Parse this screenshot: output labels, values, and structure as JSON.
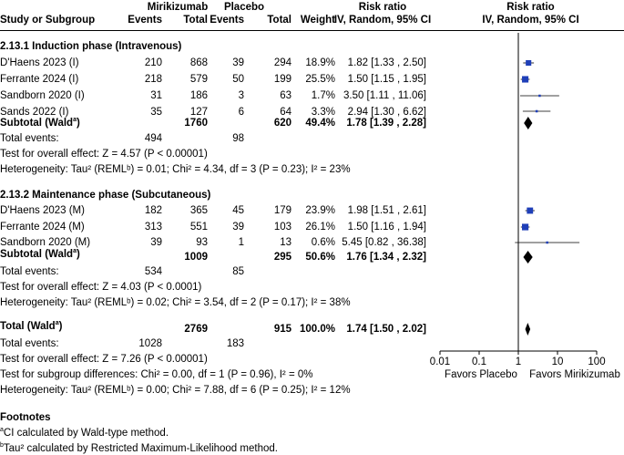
{
  "header": {
    "col_study": "Study or Subgroup",
    "group1": "Mirikizumab",
    "group2": "Placebo",
    "events": "Events",
    "total": "Total",
    "weight": "Weight",
    "rr_title": "Risk ratio",
    "rr_method": "IV, Random, 95% CI",
    "plot_title": "Risk ratio",
    "plot_method": "IV, Random, 95% CI"
  },
  "subgroups": [
    {
      "title": "2.13.1 Induction phase (Intravenous)",
      "studies": [
        {
          "name": "D'Haens 2023 (I)",
          "e1": "210",
          "n1": "868",
          "e2": "39",
          "n2": "294",
          "weight": "18.9%",
          "ci_text": "1.82 [1.33 , 2.50]",
          "rr": 1.82,
          "lo": 1.33,
          "hi": 2.5
        },
        {
          "name": "Ferrante 2024 (I)",
          "e1": "218",
          "n1": "579",
          "e2": "50",
          "n2": "199",
          "weight": "25.5%",
          "ci_text": "1.50 [1.15 , 1.95]",
          "rr": 1.5,
          "lo": 1.15,
          "hi": 1.95
        },
        {
          "name": "Sandborn 2020 (I)",
          "e1": "31",
          "n1": "186",
          "e2": "3",
          "n2": "63",
          "weight": "1.7%",
          "ci_text": "3.50 [1.11 , 11.06]",
          "rr": 3.5,
          "lo": 1.11,
          "hi": 11.06
        },
        {
          "name": "Sands 2022 (I)",
          "e1": "35",
          "n1": "127",
          "e2": "6",
          "n2": "64",
          "weight": "3.3%",
          "ci_text": "2.94 [1.30 , 6.62]",
          "rr": 2.94,
          "lo": 1.3,
          "hi": 6.62
        }
      ],
      "subtotal": {
        "label": "Subtotal (Wald",
        "sup": "a",
        "n1": "1760",
        "n2": "620",
        "weight": "49.4%",
        "ci_text": "1.78 [1.39 , 2.28]",
        "rr": 1.78,
        "lo": 1.39,
        "hi": 2.28
      },
      "total_events_label": "Total events:",
      "total_events1": "494",
      "total_events2": "98",
      "overall_effect": "Test for overall effect: Z = 4.57 (P < 0.00001)",
      "heterogeneity": "Heterogeneity: Tau² (REMLᵇ) = 0.01; Chi² = 4.34, df = 3 (P = 0.23); I² = 23%"
    },
    {
      "title": "2.13.2 Maintenance phase (Subcutaneous)",
      "studies": [
        {
          "name": "D'Haens 2023 (M)",
          "e1": "182",
          "n1": "365",
          "e2": "45",
          "n2": "179",
          "weight": "23.9%",
          "ci_text": "1.98 [1.51 , 2.61]",
          "rr": 1.98,
          "lo": 1.51,
          "hi": 2.61
        },
        {
          "name": "Ferrante 2024 (M)",
          "e1": "313",
          "n1": "551",
          "e2": "39",
          "n2": "103",
          "weight": "26.1%",
          "ci_text": "1.50 [1.16 , 1.94]",
          "rr": 1.5,
          "lo": 1.16,
          "hi": 1.94
        },
        {
          "name": "Sandborn 2020 (M)",
          "e1": "39",
          "n1": "93",
          "e2": "1",
          "n2": "13",
          "weight": "0.6%",
          "ci_text": "5.45 [0.82 , 36.38]",
          "rr": 5.45,
          "lo": 0.82,
          "hi": 36.38
        }
      ],
      "subtotal": {
        "label": "Subtotal (Wald",
        "sup": "a",
        "n1": "1009",
        "n2": "295",
        "weight": "50.6%",
        "ci_text": "1.76 [1.34 , 2.32]",
        "rr": 1.76,
        "lo": 1.34,
        "hi": 2.32
      },
      "total_events_label": "Total events:",
      "total_events1": "534",
      "total_events2": "85",
      "overall_effect": "Test for overall effect: Z = 4.03 (P < 0.0001)",
      "heterogeneity": "Heterogeneity: Tau² (REMLᵇ) = 0.02; Chi² = 3.54, df = 2 (P = 0.17); I² = 38%"
    }
  ],
  "overall": {
    "label": "Total (Wald",
    "sup": "a",
    "n1": "2769",
    "n2": "915",
    "weight": "100.0%",
    "ci_text": "1.74 [1.50 , 2.02]",
    "rr": 1.74,
    "lo": 1.5,
    "hi": 2.02,
    "total_events_label": "Total events:",
    "total_events1": "1028",
    "total_events2": "183",
    "overall_effect": "Test for overall effect: Z = 7.26 (P < 0.00001)",
    "subgroup_diff": "Test for subgroup differences: Chi² = 0.00, df = 1 (P = 0.96), I² = 0%",
    "heterogeneity": "Heterogeneity: Tau² (REMLᵇ) = 0.00; Chi² = 7.88, df = 6 (P = 0.25); I² = 12%"
  },
  "footnotes": {
    "title": "Footnotes",
    "a_mark": "a",
    "a": "CI calculated by Wald-type method.",
    "b_mark": "b",
    "b": "Tau² calculated by Restricted Maximum-Likelihood method."
  },
  "chart_data": {
    "type": "forest",
    "x_scale": "log",
    "xlim": [
      0.01,
      100
    ],
    "x_ticks": [
      "0.01",
      "0.1",
      "1",
      "10",
      "100"
    ],
    "x_tick_values": [
      0.01,
      0.1,
      1,
      10,
      100
    ],
    "null_line": 1,
    "left_label": "Favors Placebo",
    "right_label": "Favors Mirikizumab",
    "study_color": "#1f3fb8",
    "diamond_color": "#000000"
  }
}
